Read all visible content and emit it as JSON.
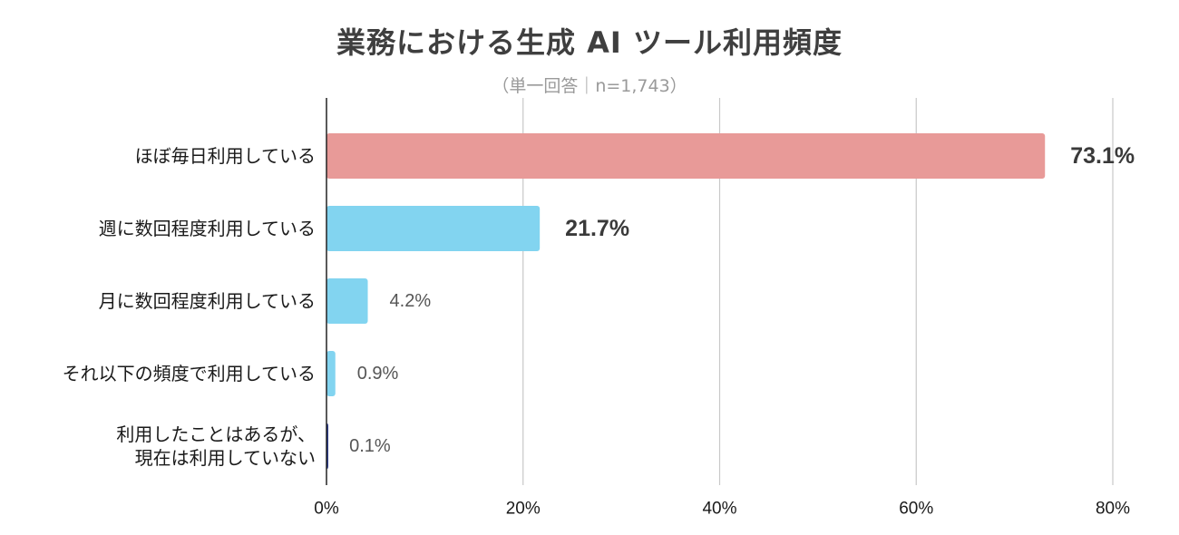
{
  "chart_data": {
    "type": "bar",
    "orientation": "horizontal",
    "title": "業務における生成 AI ツール利用頻度",
    "subtitle": "（単一回答｜n=1,743）",
    "categories": [
      "ほぼ毎日利用している",
      "週に数回程度利用している",
      "月に数回程度利用している",
      "それ以下の頻度で利用している",
      "利用したことはあるが、\n現在は利用していない"
    ],
    "values": [
      73.1,
      21.7,
      4.2,
      0.9,
      0.1
    ],
    "value_labels": [
      "73.1%",
      "21.7%",
      "4.2%",
      "0.9%",
      "0.1%"
    ],
    "value_label_bold": [
      true,
      true,
      false,
      false,
      false
    ],
    "bar_colors": [
      "#e89a98",
      "#82d4f0",
      "#82d4f0",
      "#82d4f0",
      "#2b3a8c"
    ],
    "xlim": [
      0,
      80
    ],
    "xticks": [
      0,
      20,
      40,
      60,
      80
    ],
    "xtick_labels": [
      "0%",
      "20%",
      "40%",
      "60%",
      "80%"
    ],
    "grid": true,
    "legend": "none"
  }
}
